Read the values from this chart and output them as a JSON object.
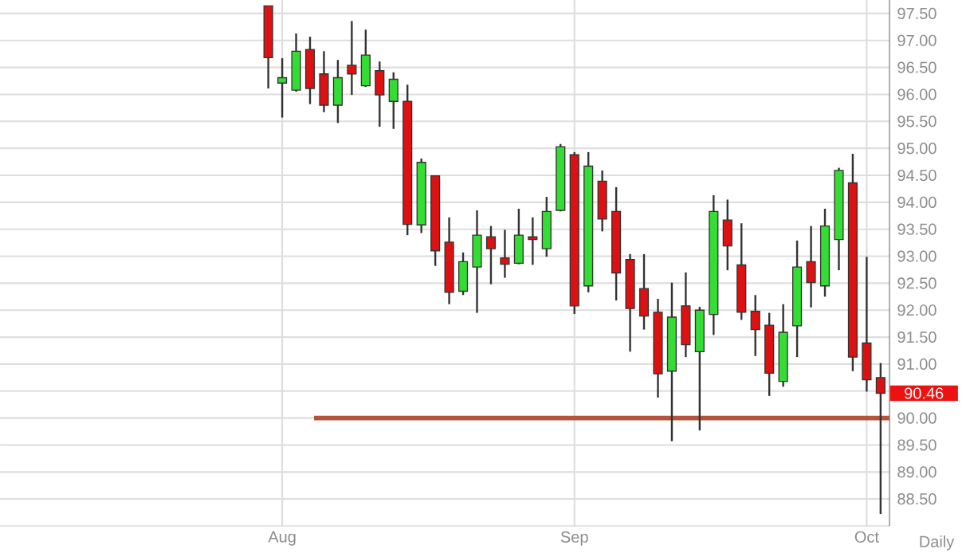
{
  "chart_data": {
    "type": "candlestick",
    "categories": [
      null,
      "Aug",
      null,
      null,
      null,
      null,
      null,
      null,
      null,
      null,
      null,
      null,
      null,
      null,
      null,
      null,
      null,
      null,
      null,
      null,
      null,
      null,
      "Sep",
      null,
      null,
      null,
      null,
      null,
      null,
      null,
      null,
      null,
      null,
      null,
      null,
      null,
      null,
      null,
      null,
      null,
      null,
      null,
      null,
      "Oct",
      null
    ],
    "ohlc": [
      [
        97.64,
        97.64,
        96.11,
        96.68
      ],
      [
        96.21,
        96.67,
        95.57,
        96.31
      ],
      [
        96.08,
        97.13,
        96.05,
        96.8
      ],
      [
        96.83,
        97.07,
        95.82,
        96.11
      ],
      [
        96.38,
        96.8,
        95.67,
        95.8
      ],
      [
        95.8,
        96.64,
        95.47,
        96.31
      ],
      [
        96.54,
        97.36,
        95.99,
        96.38
      ],
      [
        96.16,
        97.2,
        96.14,
        96.73
      ],
      [
        96.44,
        96.61,
        95.4,
        95.99
      ],
      [
        95.87,
        96.41,
        95.36,
        96.28
      ],
      [
        95.87,
        96.18,
        93.39,
        93.59
      ],
      [
        93.58,
        94.81,
        93.43,
        94.74
      ],
      [
        94.49,
        94.5,
        92.82,
        93.1
      ],
      [
        93.26,
        93.72,
        92.11,
        92.33
      ],
      [
        92.35,
        93.07,
        92.28,
        92.9
      ],
      [
        92.8,
        93.85,
        91.95,
        93.39
      ],
      [
        93.36,
        93.56,
        92.48,
        93.14
      ],
      [
        92.97,
        93.49,
        92.6,
        92.85
      ],
      [
        92.87,
        93.88,
        92.85,
        93.39
      ],
      [
        93.36,
        93.72,
        92.84,
        93.31
      ],
      [
        93.14,
        94.1,
        92.99,
        93.83
      ],
      [
        93.85,
        95.08,
        93.83,
        95.03
      ],
      [
        94.88,
        94.93,
        91.93,
        92.08
      ],
      [
        92.45,
        94.93,
        92.33,
        94.67
      ],
      [
        94.39,
        94.59,
        93.46,
        93.69
      ],
      [
        93.83,
        94.28,
        92.18,
        92.69
      ],
      [
        92.94,
        93.04,
        91.23,
        92.03
      ],
      [
        92.4,
        93.04,
        91.64,
        91.89
      ],
      [
        91.96,
        92.21,
        90.38,
        90.82
      ],
      [
        90.87,
        92.51,
        89.57,
        91.87
      ],
      [
        92.08,
        92.7,
        91.13,
        91.36
      ],
      [
        91.23,
        92.06,
        89.77,
        92.0
      ],
      [
        91.92,
        94.13,
        91.54,
        93.83
      ],
      [
        93.67,
        94.05,
        92.74,
        93.19
      ],
      [
        92.84,
        93.61,
        91.82,
        91.96
      ],
      [
        91.98,
        92.28,
        91.15,
        91.64
      ],
      [
        91.72,
        91.95,
        90.41,
        90.83
      ],
      [
        90.68,
        92.11,
        90.58,
        91.59
      ],
      [
        91.71,
        93.29,
        91.13,
        92.8
      ],
      [
        92.9,
        93.56,
        92.05,
        92.51
      ],
      [
        92.45,
        93.88,
        92.25,
        93.56
      ],
      [
        93.31,
        94.64,
        92.74,
        94.59
      ],
      [
        94.36,
        94.9,
        90.87,
        91.13
      ],
      [
        91.39,
        92.99,
        90.49,
        90.71
      ],
      [
        90.75,
        91.02,
        88.22,
        90.46
      ]
    ],
    "colors": [
      "#dd1111",
      "#33dd33",
      "#33dd33",
      "#dd1111",
      "#dd1111",
      "#33dd33",
      "#dd1111",
      "#33dd33",
      "#dd1111",
      "#33dd33",
      "#dd1111",
      "#33dd33",
      "#dd1111",
      "#dd1111",
      "#33dd33",
      "#33dd33",
      "#dd1111",
      "#dd1111",
      "#33dd33",
      "#dd1111",
      "#33dd33",
      "#33dd33",
      "#dd1111",
      "#33dd33",
      "#dd1111",
      "#dd1111",
      "#dd1111",
      "#dd1111",
      "#dd1111",
      "#33dd33",
      "#dd1111",
      "#33dd33",
      "#33dd33",
      "#dd1111",
      "#dd1111",
      "#dd1111",
      "#dd1111",
      "#33dd33",
      "#33dd33",
      "#dd1111",
      "#33dd33",
      "#33dd33",
      "#dd1111",
      "#dd1111",
      "#dd1111"
    ],
    "ylim": [
      88.0,
      97.75
    ],
    "yticks": [
      {
        "value": 88.5,
        "label": "88.50"
      },
      {
        "value": 89.0,
        "label": "89.00"
      },
      {
        "value": 89.5,
        "label": "89.50"
      },
      {
        "value": 90.0,
        "label": "90.00"
      },
      {
        "value": 90.5,
        "label": null
      },
      {
        "value": 91.0,
        "label": "91.00"
      },
      {
        "value": 91.5,
        "label": "91.50"
      },
      {
        "value": 92.0,
        "label": "92.00"
      },
      {
        "value": 92.5,
        "label": "92.50"
      },
      {
        "value": 93.0,
        "label": "93.00"
      },
      {
        "value": 93.5,
        "label": "93.50"
      },
      {
        "value": 94.0,
        "label": "94.00"
      },
      {
        "value": 94.5,
        "label": "94.50"
      },
      {
        "value": 95.0,
        "label": "95.00"
      },
      {
        "value": 95.5,
        "label": "95.50"
      },
      {
        "value": 96.0,
        "label": "96.00"
      },
      {
        "value": 96.5,
        "label": "96.50"
      },
      {
        "value": 97.0,
        "label": "97.00"
      },
      {
        "value": 97.5,
        "label": "97.50"
      }
    ],
    "grid": true,
    "ref_lines": [
      {
        "axis": "y",
        "value": 90.0,
        "color": "#b5533c"
      }
    ],
    "annotations": [
      "90.46",
      "Daily"
    ]
  }
}
